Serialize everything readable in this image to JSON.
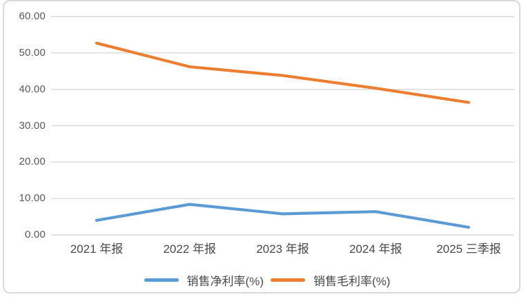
{
  "chart_data": {
    "type": "line",
    "title": "",
    "xlabel": "",
    "ylabel": "",
    "categories": [
      "2021 年报",
      "2022 年报",
      "2023 年报",
      "2024 年报",
      "2025 三季报"
    ],
    "series": [
      {
        "name": "销售净利率(%)",
        "color": "#5B9BD5",
        "values": [
          4.0,
          8.4,
          5.8,
          6.4,
          2.1
        ]
      },
      {
        "name": "销售毛利率(%)",
        "color": "#ED7D31",
        "values": [
          52.7,
          46.2,
          43.8,
          40.3,
          36.4
        ]
      }
    ],
    "ylim": [
      0,
      60
    ],
    "ytick_step": 10,
    "ytick_labels": [
      "0.00",
      "10.00",
      "20.00",
      "30.00",
      "40.00",
      "50.00",
      "60.00"
    ],
    "grid": true,
    "legend_position": "bottom-center"
  },
  "colors": {
    "gridline": "#D9D9D9",
    "frame_border": "#D9D9D9",
    "axis_label": "#595959",
    "background": "#FFFFFF"
  }
}
